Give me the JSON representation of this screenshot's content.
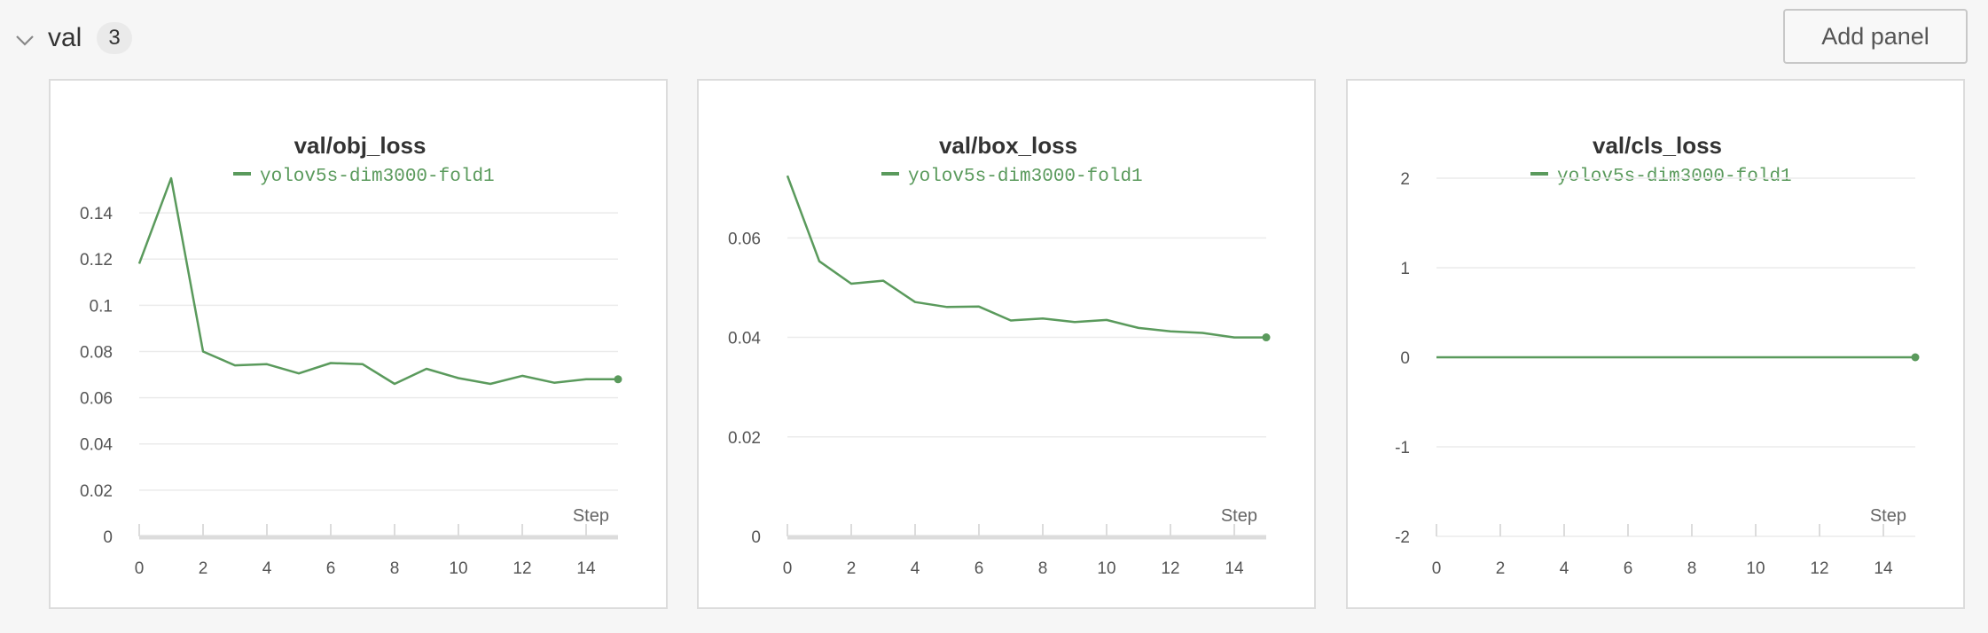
{
  "section": {
    "title": "val",
    "count": "3"
  },
  "toolbar": {
    "add_panel_label": "Add panel"
  },
  "colors": {
    "series": "#5a9a5c",
    "grid": "#ebebeb",
    "axis": "#dcdcdc"
  },
  "icons": {
    "collapse": "chevron-down-icon"
  },
  "chart_data": [
    {
      "type": "line",
      "title": "val/obj_loss",
      "xlabel": "Step",
      "ylabel": "",
      "xlim": [
        0,
        15
      ],
      "ylim": [
        0,
        0.155
      ],
      "xticks": [
        0,
        2,
        4,
        6,
        8,
        10,
        12,
        14
      ],
      "xtick_labels": [
        "0",
        "2",
        "4",
        "6",
        "8",
        "10",
        "12",
        "14"
      ],
      "yticks": [
        0,
        0.02,
        0.04,
        0.06,
        0.08,
        0.1,
        0.12,
        0.14
      ],
      "ytick_labels": [
        "0",
        "0.02",
        "0.04",
        "0.06",
        "0.08",
        "0.1",
        "0.12",
        "0.14"
      ],
      "grid": true,
      "legend": "top-center",
      "series": [
        {
          "name": "yolov5s-dim3000-fold1",
          "x": [
            0,
            1,
            2,
            3,
            4,
            5,
            6,
            7,
            8,
            9,
            10,
            11,
            12,
            13,
            14,
            15
          ],
          "y": [
            0.118,
            0.155,
            0.08,
            0.074,
            0.0745,
            0.0705,
            0.075,
            0.0745,
            0.066,
            0.0725,
            0.0685,
            0.066,
            0.0695,
            0.0665,
            0.068,
            0.068
          ]
        }
      ]
    },
    {
      "type": "line",
      "title": "val/box_loss",
      "xlabel": "Step",
      "ylabel": "",
      "xlim": [
        0,
        15
      ],
      "ylim": [
        0,
        0.072
      ],
      "xticks": [
        0,
        2,
        4,
        6,
        8,
        10,
        12,
        14
      ],
      "xtick_labels": [
        "0",
        "2",
        "4",
        "6",
        "8",
        "10",
        "12",
        "14"
      ],
      "yticks": [
        0,
        0.02,
        0.04,
        0.06
      ],
      "ytick_labels": [
        "0",
        "0.02",
        "0.04",
        "0.06"
      ],
      "grid": true,
      "legend": "top-center",
      "series": [
        {
          "name": "yolov5s-dim3000-fold1",
          "x": [
            0,
            1,
            2,
            3,
            4,
            5,
            6,
            7,
            8,
            9,
            10,
            11,
            12,
            13,
            14,
            15
          ],
          "y": [
            0.0725,
            0.0553,
            0.0508,
            0.0514,
            0.0471,
            0.0461,
            0.0462,
            0.0434,
            0.0438,
            0.0431,
            0.0435,
            0.0419,
            0.0412,
            0.0409,
            0.04,
            0.04
          ]
        }
      ]
    },
    {
      "type": "line",
      "title": "val/cls_loss",
      "xlabel": "Step",
      "ylabel": "",
      "xlim": [
        0,
        15
      ],
      "ylim": [
        -2,
        2
      ],
      "xticks": [
        0,
        2,
        4,
        6,
        8,
        10,
        12,
        14
      ],
      "xtick_labels": [
        "0",
        "2",
        "4",
        "6",
        "8",
        "10",
        "12",
        "14"
      ],
      "yticks": [
        -2,
        -1,
        0,
        1,
        2
      ],
      "ytick_labels": [
        "-2",
        "-1",
        "0",
        "1",
        "2"
      ],
      "grid": true,
      "legend": "top-center",
      "series": [
        {
          "name": "yolov5s-dim3000-fold1",
          "x": [
            0,
            1,
            2,
            3,
            4,
            5,
            6,
            7,
            8,
            9,
            10,
            11,
            12,
            13,
            14,
            15
          ],
          "y": [
            0,
            0,
            0,
            0,
            0,
            0,
            0,
            0,
            0,
            0,
            0,
            0,
            0,
            0,
            0,
            0
          ]
        }
      ]
    }
  ]
}
